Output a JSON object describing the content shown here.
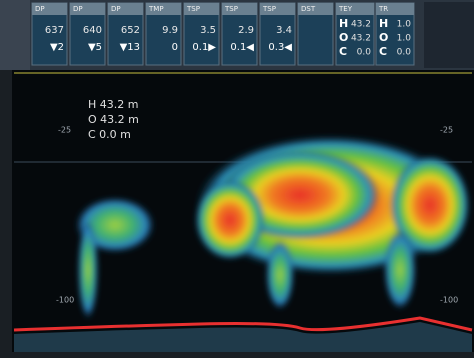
{
  "header": {
    "panels": [
      {
        "label": "DP",
        "value": "637",
        "sub": "▼2"
      },
      {
        "label": "DP",
        "value": "640",
        "sub": "▼5"
      },
      {
        "label": "DP",
        "value": "652",
        "sub": "▼13"
      },
      {
        "label": "TMP",
        "value": "9.9",
        "sub": "0"
      },
      {
        "label": "TSP",
        "value": "3.5",
        "sub": "0.1▶"
      },
      {
        "label": "TSP",
        "value": "2.9",
        "sub": "0.1◀"
      },
      {
        "label": "TSP",
        "value": "3.4",
        "sub": "0.3◀"
      },
      {
        "label": "DST",
        "value": "",
        "sub": ""
      }
    ],
    "range_panels": [
      {
        "label": "TEY",
        "rows": [
          [
            "H",
            "43.2"
          ],
          [
            "O",
            "43.2"
          ],
          [
            "C",
            "0.0"
          ]
        ]
      },
      {
        "label": "TR",
        "rows": [
          [
            "H",
            "1.0"
          ],
          [
            "O",
            "1.0"
          ],
          [
            "C",
            "0.0"
          ]
        ]
      }
    ]
  },
  "display": {
    "readout": [
      "H 43.2 m",
      "O 43.2 m",
      "C 0.0 m"
    ],
    "depth_labels": [
      "-25",
      "-100"
    ]
  }
}
